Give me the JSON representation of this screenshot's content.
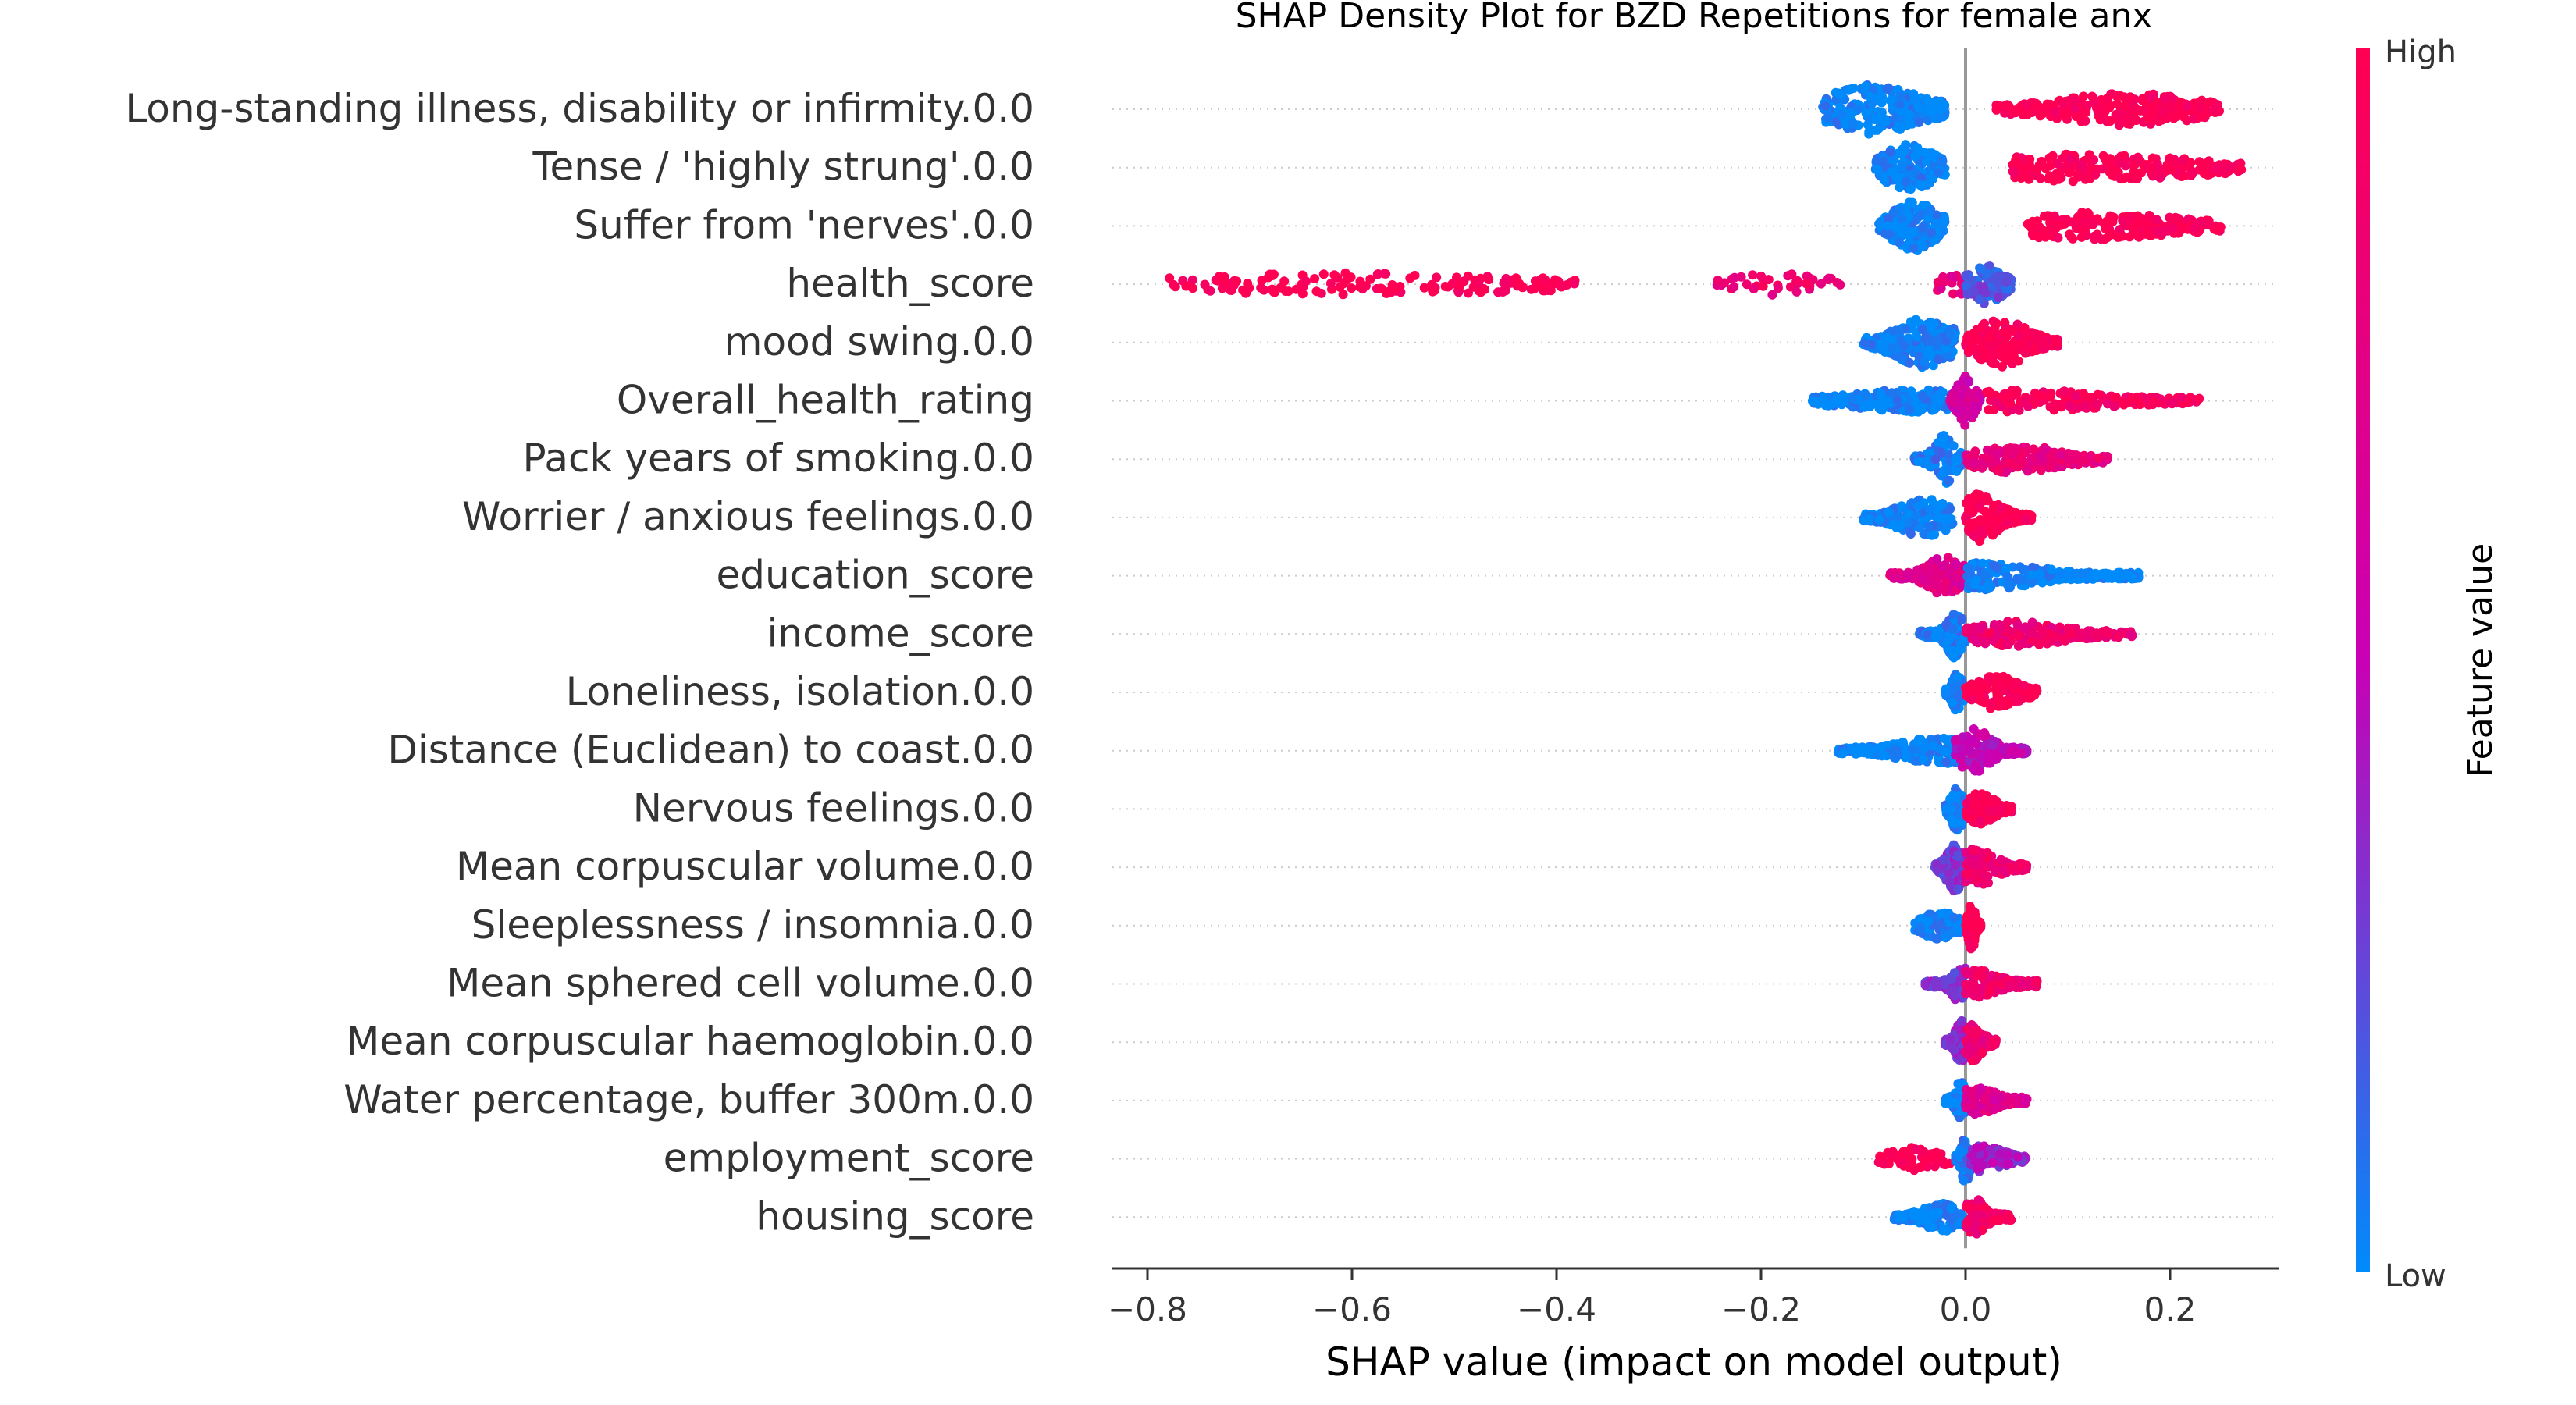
{
  "chart_data": {
    "type": "scatter",
    "subtype": "shap-beeswarm",
    "title": "SHAP Density Plot for BZD Repetitions for female anx",
    "xlabel": "SHAP value (impact on model output)",
    "xlim": [
      -0.815,
      0.31
    ],
    "xticks": [
      -0.8,
      -0.6,
      -0.4,
      -0.2,
      0.0,
      0.2
    ],
    "xtick_labels": [
      "−0.8",
      "−0.6",
      "−0.4",
      "−0.2",
      "0.0",
      "0.2"
    ],
    "zero_line": 0.0,
    "colorbar": {
      "label": "Feature value",
      "high_label": "High",
      "low_label": "Low",
      "low_color": "#008bfb",
      "high_color": "#ff0052"
    },
    "features": [
      {
        "name": "Long-standing illness, disability or infirmity.0.0",
        "segments": [
          {
            "from": -0.14,
            "to": -0.02,
            "peak": -0.09,
            "width": 0.055,
            "w": 4,
            "v": 0,
            "n": 230
          },
          {
            "from": 0.03,
            "to": 0.25,
            "peak": 0.16,
            "width": 0.08,
            "w": 2.5,
            "v": 1,
            "n": 260
          }
        ]
      },
      {
        "name": "Tense / 'highly strung'.0.0",
        "segments": [
          {
            "from": -0.09,
            "to": -0.02,
            "peak": -0.055,
            "width": 0.028,
            "w": 4,
            "v": 0,
            "n": 170
          },
          {
            "from": 0.045,
            "to": 0.27,
            "peak": 0.12,
            "width": 0.12,
            "w": 2,
            "v": 1,
            "n": 240
          }
        ]
      },
      {
        "name": "Suffer from 'nerves'.0.0",
        "segments": [
          {
            "from": -0.085,
            "to": -0.02,
            "peak": -0.05,
            "width": 0.026,
            "w": 4,
            "v": 0,
            "n": 160
          },
          {
            "from": 0.06,
            "to": 0.25,
            "peak": 0.12,
            "width": 0.1,
            "w": 2,
            "v": 1,
            "n": 220
          }
        ]
      },
      {
        "name": "health_score",
        "segments": [
          {
            "from": -0.79,
            "to": -0.38,
            "peak": -0.6,
            "width": 0.2,
            "w": 1.5,
            "v": 1,
            "n": 160
          },
          {
            "from": -0.25,
            "to": -0.12,
            "peak": -0.18,
            "width": 0.06,
            "w": 1.5,
            "v": 0.85,
            "n": 40
          },
          {
            "from": -0.03,
            "to": 0.0,
            "peak": -0.01,
            "width": 0.02,
            "w": 1.5,
            "v": 0.75,
            "n": 20
          },
          {
            "from": 0.0,
            "to": 0.045,
            "peak": 0.02,
            "width": 0.02,
            "w": 3,
            "v": 0.2,
            "n": 120
          }
        ]
      },
      {
        "name": "mood swing.0.0",
        "segments": [
          {
            "from": -0.1,
            "to": -0.01,
            "peak": -0.04,
            "width": 0.035,
            "w": 4,
            "v": 0,
            "n": 220
          },
          {
            "from": 0.0,
            "to": 0.09,
            "peak": 0.035,
            "width": 0.03,
            "w": 4,
            "v": 1,
            "n": 220
          }
        ]
      },
      {
        "name": "Overall_health_rating",
        "segments": [
          {
            "from": -0.15,
            "to": -0.01,
            "peak": -0.05,
            "width": 0.07,
            "w": 1.5,
            "v": 0,
            "n": 200
          },
          {
            "from": -0.015,
            "to": 0.015,
            "peak": 0.0,
            "width": 0.01,
            "w": 4,
            "v": 0.6,
            "n": 120
          },
          {
            "from": 0.02,
            "to": 0.23,
            "peak": 0.06,
            "width": 0.08,
            "w": 1.5,
            "v": 0.95,
            "n": 160
          }
        ]
      },
      {
        "name": "Pack years of smoking.0.0",
        "segments": [
          {
            "from": -0.05,
            "to": 0.0,
            "peak": -0.02,
            "width": 0.012,
            "w": 4,
            "v": 0.05,
            "n": 160
          },
          {
            "from": 0.0,
            "to": 0.14,
            "peak": 0.05,
            "width": 0.05,
            "w": 2,
            "v": 0.8,
            "n": 180
          }
        ]
      },
      {
        "name": "Worrier / anxious feelings.0.0",
        "segments": [
          {
            "from": -0.1,
            "to": -0.01,
            "peak": -0.04,
            "width": 0.03,
            "w": 3,
            "v": 0,
            "n": 180
          },
          {
            "from": 0.0,
            "to": 0.065,
            "peak": 0.015,
            "width": 0.022,
            "w": 4,
            "v": 1,
            "n": 200
          }
        ]
      },
      {
        "name": "education_score",
        "segments": [
          {
            "from": -0.075,
            "to": 0.0,
            "peak": -0.02,
            "width": 0.02,
            "w": 3,
            "v": 0.7,
            "n": 150
          },
          {
            "from": 0.0,
            "to": 0.17,
            "peak": 0.02,
            "width": 0.06,
            "w": 2,
            "v": 0,
            "n": 220
          }
        ]
      },
      {
        "name": "income_score",
        "segments": [
          {
            "from": -0.045,
            "to": 0.0,
            "peak": -0.01,
            "width": 0.01,
            "w": 4,
            "v": 0.05,
            "n": 170
          },
          {
            "from": 0.0,
            "to": 0.165,
            "peak": 0.05,
            "width": 0.05,
            "w": 1.8,
            "v": 0.85,
            "n": 170
          }
        ]
      },
      {
        "name": "Loneliness, isolation.0.0",
        "segments": [
          {
            "from": -0.02,
            "to": 0.0,
            "peak": -0.008,
            "width": 0.006,
            "w": 3,
            "v": 0,
            "n": 100
          },
          {
            "from": 0.0,
            "to": 0.07,
            "peak": 0.03,
            "width": 0.025,
            "w": 2.5,
            "v": 1,
            "n": 150
          }
        ]
      },
      {
        "name": "Distance (Euclidean) to coast.0.0",
        "segments": [
          {
            "from": -0.125,
            "to": 0.0,
            "peak": -0.02,
            "width": 0.05,
            "w": 2,
            "v": 0,
            "n": 200
          },
          {
            "from": -0.01,
            "to": 0.06,
            "peak": 0.008,
            "width": 0.02,
            "w": 3.5,
            "v": 0.5,
            "n": 150
          }
        ]
      },
      {
        "name": "Nervous feelings.0.0",
        "segments": [
          {
            "from": -0.02,
            "to": 0.0,
            "peak": -0.008,
            "width": 0.007,
            "w": 3.5,
            "v": 0,
            "n": 110
          },
          {
            "from": 0.0,
            "to": 0.045,
            "peak": 0.015,
            "width": 0.015,
            "w": 2.5,
            "v": 1,
            "n": 130
          }
        ]
      },
      {
        "name": "Mean corpuscular volume.0.0",
        "segments": [
          {
            "from": -0.03,
            "to": 0.0,
            "peak": -0.01,
            "width": 0.01,
            "w": 4,
            "v": 0.3,
            "n": 150
          },
          {
            "from": 0.0,
            "to": 0.06,
            "peak": 0.012,
            "width": 0.02,
            "w": 3,
            "v": 0.85,
            "n": 150
          }
        ]
      },
      {
        "name": "Sleeplessness / insomnia.0.0",
        "segments": [
          {
            "from": -0.05,
            "to": -0.002,
            "peak": -0.025,
            "width": 0.02,
            "w": 2,
            "v": 0,
            "n": 110
          },
          {
            "from": 0.0,
            "to": 0.015,
            "peak": 0.006,
            "width": 0.004,
            "w": 4,
            "v": 1,
            "n": 110
          }
        ]
      },
      {
        "name": "Mean sphered cell volume.0.0",
        "segments": [
          {
            "from": -0.04,
            "to": 0.0,
            "peak": -0.005,
            "width": 0.01,
            "w": 3,
            "v": 0.3,
            "n": 120
          },
          {
            "from": 0.0,
            "to": 0.07,
            "peak": 0.01,
            "width": 0.025,
            "w": 2,
            "v": 0.85,
            "n": 140
          }
        ]
      },
      {
        "name": "Mean corpuscular haemoglobin.0.0",
        "segments": [
          {
            "from": -0.02,
            "to": 0.0,
            "peak": -0.005,
            "width": 0.006,
            "w": 3.5,
            "v": 0.35,
            "n": 110
          },
          {
            "from": 0.0,
            "to": 0.03,
            "peak": 0.008,
            "width": 0.01,
            "w": 3,
            "v": 0.85,
            "n": 110
          }
        ]
      },
      {
        "name": "Water percentage, buffer 300m.0.0",
        "segments": [
          {
            "from": -0.02,
            "to": 0.0,
            "peak": -0.005,
            "width": 0.006,
            "w": 3,
            "v": 0,
            "n": 100
          },
          {
            "from": 0.0,
            "to": 0.06,
            "peak": 0.012,
            "width": 0.02,
            "w": 2,
            "v": 0.7,
            "n": 130
          }
        ]
      },
      {
        "name": "employment_score",
        "segments": [
          {
            "from": -0.085,
            "to": -0.015,
            "peak": -0.05,
            "width": 0.03,
            "w": 1.5,
            "v": 1,
            "n": 60
          },
          {
            "from": -0.01,
            "to": 0.01,
            "peak": 0.0,
            "width": 0.005,
            "w": 4,
            "v": 0.1,
            "n": 120
          },
          {
            "from": 0.005,
            "to": 0.06,
            "peak": 0.02,
            "width": 0.02,
            "w": 2,
            "v": 0.4,
            "n": 120
          }
        ]
      },
      {
        "name": "housing_score",
        "segments": [
          {
            "from": -0.07,
            "to": 0.0,
            "peak": -0.02,
            "width": 0.025,
            "w": 2,
            "v": 0,
            "n": 130
          },
          {
            "from": 0.0,
            "to": 0.045,
            "peak": 0.01,
            "width": 0.012,
            "w": 3,
            "v": 0.9,
            "n": 130
          }
        ]
      }
    ]
  }
}
